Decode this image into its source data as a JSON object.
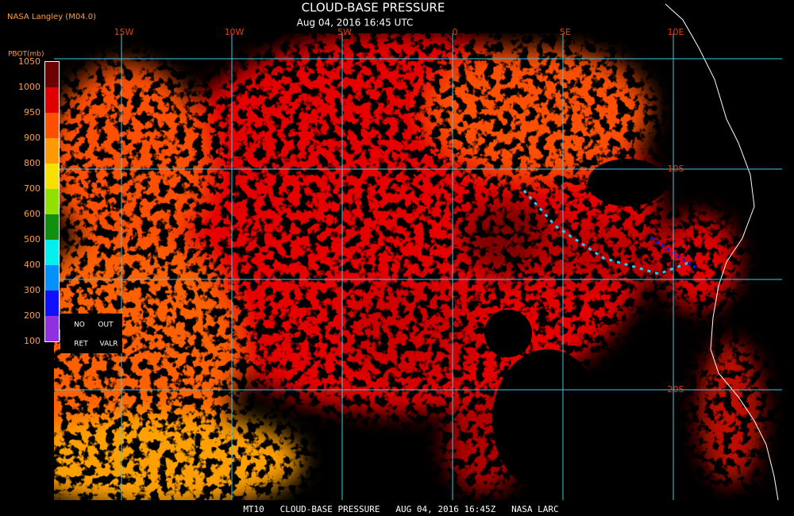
{
  "header": {
    "source": "NASA Langley (M04.0)",
    "title": "CLOUD-BASE PRESSURE",
    "subtitle": "Aug 04, 2016 16:45 UTC"
  },
  "legend": {
    "title": "PBOT(mb)",
    "labels": [
      "1050",
      "1000",
      "950",
      "900",
      "800",
      "700",
      "600",
      "500",
      "400",
      "300",
      "200",
      "100"
    ],
    "colors": [
      "#6e0000",
      "#e00000",
      "#ff5000",
      "#ff9a00",
      "#f5e000",
      "#90e000",
      "#109010",
      "#00f0f0",
      "#0090ff",
      "#1010ff",
      "#9030e0"
    ],
    "notes": [
      "NO",
      "OUT",
      "RET",
      "VALR"
    ]
  },
  "grid": {
    "lon_labels": [
      "15W",
      "10W",
      "5W",
      "0",
      "5E",
      "10E"
    ],
    "lat_labels": [
      "10S",
      "20S"
    ]
  },
  "footer": {
    "text": "MT10   CLOUD-BASE PRESSURE   AUG 04, 2016 16:45Z   NASA LARC"
  }
}
